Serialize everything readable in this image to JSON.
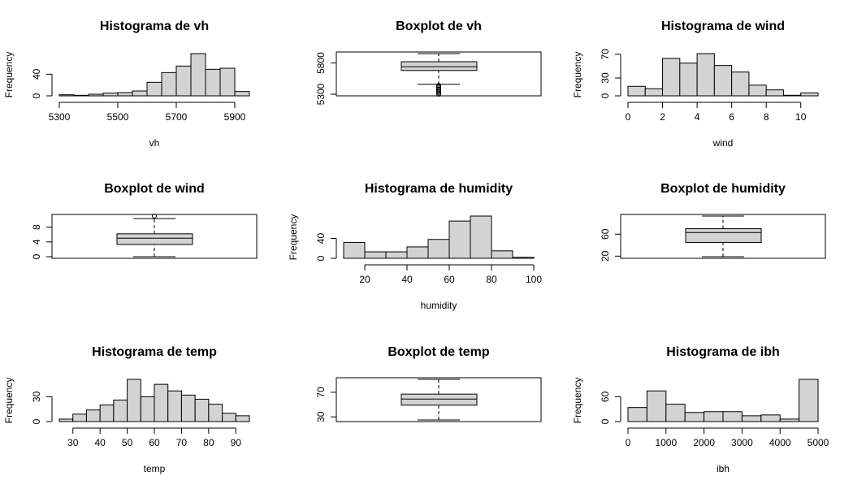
{
  "chart_data": [
    {
      "type": "histogram",
      "title": "Histograma de vh",
      "x_label": "vh",
      "y_label": "Frequency",
      "bins": [
        5300,
        5350,
        5400,
        5450,
        5500,
        5550,
        5600,
        5650,
        5700,
        5750,
        5800,
        5850,
        5900,
        5950
      ],
      "values": [
        2,
        1,
        3,
        5,
        6,
        9,
        25,
        43,
        55,
        78,
        49,
        51,
        8
      ],
      "xlim": [
        5300,
        5950
      ],
      "xticks": [
        5300,
        5500,
        5700,
        5900
      ],
      "ylim": [
        0,
        78
      ],
      "yticks": [
        0,
        40
      ],
      "color": "#d3d3d3"
    },
    {
      "type": "boxplot",
      "title": "Boxplot de vh",
      "min": 5460,
      "q1": 5680,
      "median": 5740,
      "q3": 5820,
      "max": 5950,
      "outliers": [
        5300,
        5320,
        5340,
        5360,
        5380,
        5400,
        5420,
        5440
      ],
      "ylim": [
        5274,
        5976
      ],
      "yticks": [
        5300,
        5800
      ],
      "color": "#d3d3d3"
    },
    {
      "type": "histogram",
      "title": "Histograma de wind",
      "x_label": "wind",
      "y_label": "Frequency",
      "bins": [
        0,
        1,
        2,
        3,
        4,
        5,
        6,
        7,
        8,
        9,
        10,
        11
      ],
      "values": [
        16,
        12,
        63,
        55,
        71,
        51,
        40,
        18,
        10,
        1,
        5
      ],
      "xlim": [
        0,
        11
      ],
      "xticks": [
        0,
        2,
        4,
        6,
        8,
        10
      ],
      "ylim": [
        0,
        71
      ],
      "yticks": [
        0,
        30,
        70
      ],
      "color": "#d3d3d3"
    },
    {
      "type": "boxplot",
      "title": "Boxplot de wind",
      "min": 0,
      "q1": 3.3,
      "median": 5,
      "q3": 6.2,
      "max": 10.3,
      "outliers": [
        11
      ],
      "ylim": [
        -0.44,
        11.44
      ],
      "yticks": [
        0,
        4,
        8
      ],
      "color": "#d3d3d3"
    },
    {
      "type": "histogram",
      "title": "Histograma de humidity",
      "x_label": "humidity",
      "y_label": "Frequency",
      "bins": [
        10,
        20,
        30,
        40,
        50,
        60,
        70,
        80,
        90,
        100
      ],
      "values": [
        32,
        13,
        13,
        23,
        38,
        75,
        85,
        15,
        2
      ],
      "xlim": [
        10,
        100
      ],
      "xticks": [
        20,
        40,
        60,
        80,
        100
      ],
      "ylim": [
        0,
        85
      ],
      "yticks": [
        0,
        40
      ],
      "color": "#d3d3d3"
    },
    {
      "type": "boxplot",
      "title": "Boxplot de humidity",
      "min": 19,
      "q1": 45,
      "median": 63,
      "q3": 70,
      "max": 93,
      "outliers": [],
      "ylim": [
        16.04,
        95.96
      ],
      "yticks": [
        20,
        60
      ],
      "color": "#d3d3d3"
    },
    {
      "type": "histogram",
      "title": "Histograma de temp",
      "x_label": "temp",
      "y_label": "Frequency",
      "bins": [
        25,
        30,
        35,
        40,
        45,
        50,
        55,
        60,
        65,
        70,
        75,
        80,
        85,
        90,
        95
      ],
      "values": [
        3,
        9,
        14,
        20,
        26,
        51,
        30,
        45,
        37,
        32,
        27,
        21,
        10,
        7
      ],
      "xlim": [
        25,
        95
      ],
      "xticks": [
        30,
        40,
        50,
        60,
        70,
        80,
        90
      ],
      "ylim": [
        0,
        51
      ],
      "yticks": [
        0,
        30
      ],
      "color": "#d3d3d3"
    },
    {
      "type": "boxplot",
      "title": "Boxplot de temp",
      "min": 25,
      "q1": 49,
      "median": 59,
      "q3": 67,
      "max": 91,
      "outliers": [],
      "ylim": [
        22.36,
        93.64
      ],
      "yticks": [
        30,
        70
      ],
      "color": "#d3d3d3"
    },
    {
      "type": "histogram",
      "title": "Histograma de ibh",
      "x_label": "ibh",
      "y_label": "Frequency",
      "bins": [
        0,
        500,
        1000,
        1500,
        2000,
        2500,
        3000,
        3500,
        4000,
        4500,
        5000
      ],
      "values": [
        34,
        74,
        42,
        22,
        24,
        24,
        14,
        16,
        6,
        102
      ],
      "xlim": [
        0,
        5000
      ],
      "xticks": [
        0,
        1000,
        2000,
        3000,
        4000,
        5000
      ],
      "ylim": [
        0,
        102
      ],
      "yticks": [
        0,
        60
      ],
      "color": "#d3d3d3"
    }
  ]
}
